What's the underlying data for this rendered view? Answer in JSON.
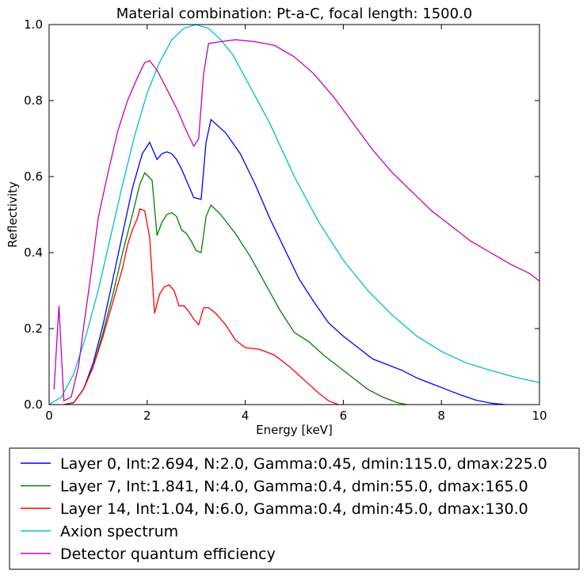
{
  "chart_data": {
    "type": "line",
    "title": "Material combination: Pt-a-C, focal length: 1500.0",
    "xlabel": "Energy [keV]",
    "ylabel": "Reflectivity",
    "xlim": [
      0,
      10
    ],
    "ylim": [
      0,
      1.0
    ],
    "xticks": [
      "0",
      "2",
      "4",
      "6",
      "8",
      "10"
    ],
    "yticks": [
      "0.0",
      "0.2",
      "0.4",
      "0.6",
      "0.8",
      "1.0"
    ],
    "grid": false,
    "legend_position": "bottom",
    "series": [
      {
        "name": "Layer 0, Int:2.694, N:2.0, Gamma:0.45, dmin:115.0, dmax:225.0",
        "color": "#0000ff",
        "points": [
          [
            0.3,
            0.0
          ],
          [
            0.5,
            0.005
          ],
          [
            0.7,
            0.04
          ],
          [
            0.9,
            0.11
          ],
          [
            1.1,
            0.21
          ],
          [
            1.3,
            0.33
          ],
          [
            1.5,
            0.45
          ],
          [
            1.7,
            0.57
          ],
          [
            1.9,
            0.66
          ],
          [
            2.05,
            0.69
          ],
          [
            2.2,
            0.645
          ],
          [
            2.3,
            0.66
          ],
          [
            2.4,
            0.665
          ],
          [
            2.5,
            0.66
          ],
          [
            2.6,
            0.645
          ],
          [
            2.7,
            0.62
          ],
          [
            2.8,
            0.59
          ],
          [
            2.95,
            0.545
          ],
          [
            3.1,
            0.54
          ],
          [
            3.2,
            0.69
          ],
          [
            3.3,
            0.75
          ],
          [
            3.6,
            0.715
          ],
          [
            3.9,
            0.66
          ],
          [
            4.2,
            0.58
          ],
          [
            4.5,
            0.49
          ],
          [
            4.8,
            0.41
          ],
          [
            5.1,
            0.33
          ],
          [
            5.4,
            0.27
          ],
          [
            5.7,
            0.215
          ],
          [
            6.0,
            0.18
          ],
          [
            6.3,
            0.15
          ],
          [
            6.6,
            0.12
          ],
          [
            6.9,
            0.105
          ],
          [
            7.2,
            0.09
          ],
          [
            7.5,
            0.07
          ],
          [
            7.8,
            0.055
          ],
          [
            8.1,
            0.04
          ],
          [
            8.4,
            0.025
          ],
          [
            8.7,
            0.012
          ],
          [
            9.0,
            0.004
          ],
          [
            9.3,
            0.0
          ]
        ]
      },
      {
        "name": "Layer 7, Int:1.841, N:4.0, Gamma:0.4, dmin:55.0, dmax:165.0",
        "color": "#008000",
        "points": [
          [
            0.3,
            0.0
          ],
          [
            0.5,
            0.005
          ],
          [
            0.7,
            0.04
          ],
          [
            0.9,
            0.1
          ],
          [
            1.1,
            0.19
          ],
          [
            1.3,
            0.29
          ],
          [
            1.5,
            0.4
          ],
          [
            1.7,
            0.5
          ],
          [
            1.85,
            0.58
          ],
          [
            1.95,
            0.61
          ],
          [
            2.1,
            0.59
          ],
          [
            2.2,
            0.445
          ],
          [
            2.3,
            0.48
          ],
          [
            2.4,
            0.5
          ],
          [
            2.5,
            0.505
          ],
          [
            2.6,
            0.495
          ],
          [
            2.7,
            0.46
          ],
          [
            2.8,
            0.45
          ],
          [
            2.9,
            0.43
          ],
          [
            3.0,
            0.405
          ],
          [
            3.1,
            0.4
          ],
          [
            3.2,
            0.495
          ],
          [
            3.3,
            0.525
          ],
          [
            3.5,
            0.5
          ],
          [
            3.8,
            0.45
          ],
          [
            4.1,
            0.39
          ],
          [
            4.4,
            0.32
          ],
          [
            4.7,
            0.25
          ],
          [
            5.0,
            0.19
          ],
          [
            5.3,
            0.165
          ],
          [
            5.6,
            0.13
          ],
          [
            5.9,
            0.1
          ],
          [
            6.2,
            0.07
          ],
          [
            6.5,
            0.04
          ],
          [
            6.8,
            0.02
          ],
          [
            7.1,
            0.005
          ],
          [
            7.3,
            0.0
          ]
        ]
      },
      {
        "name": "Layer 14, Int:1.04, N:6.0, Gamma:0.4, dmin:45.0, dmax:130.0",
        "color": "#ff0000",
        "points": [
          [
            0.3,
            0.0
          ],
          [
            0.5,
            0.005
          ],
          [
            0.7,
            0.04
          ],
          [
            0.9,
            0.1
          ],
          [
            1.1,
            0.18
          ],
          [
            1.3,
            0.27
          ],
          [
            1.5,
            0.36
          ],
          [
            1.6,
            0.42
          ],
          [
            1.7,
            0.46
          ],
          [
            1.8,
            0.49
          ],
          [
            1.85,
            0.515
          ],
          [
            1.95,
            0.51
          ],
          [
            2.05,
            0.44
          ],
          [
            2.15,
            0.24
          ],
          [
            2.25,
            0.29
          ],
          [
            2.35,
            0.31
          ],
          [
            2.45,
            0.315
          ],
          [
            2.55,
            0.3
          ],
          [
            2.65,
            0.26
          ],
          [
            2.75,
            0.26
          ],
          [
            2.85,
            0.245
          ],
          [
            2.95,
            0.225
          ],
          [
            3.05,
            0.21
          ],
          [
            3.15,
            0.255
          ],
          [
            3.25,
            0.255
          ],
          [
            3.4,
            0.24
          ],
          [
            3.6,
            0.21
          ],
          [
            3.8,
            0.17
          ],
          [
            4.0,
            0.15
          ],
          [
            4.3,
            0.145
          ],
          [
            4.6,
            0.13
          ],
          [
            4.9,
            0.1
          ],
          [
            5.2,
            0.065
          ],
          [
            5.5,
            0.03
          ],
          [
            5.7,
            0.01
          ],
          [
            5.9,
            0.0
          ]
        ]
      },
      {
        "name": "Axion spectrum",
        "color": "#00bfbf",
        "points": [
          [
            0.0,
            0.0
          ],
          [
            0.25,
            0.02
          ],
          [
            0.5,
            0.08
          ],
          [
            0.75,
            0.18
          ],
          [
            1.0,
            0.3
          ],
          [
            1.25,
            0.44
          ],
          [
            1.5,
            0.58
          ],
          [
            1.75,
            0.71
          ],
          [
            2.0,
            0.82
          ],
          [
            2.25,
            0.9
          ],
          [
            2.5,
            0.96
          ],
          [
            2.75,
            0.99
          ],
          [
            3.0,
            1.0
          ],
          [
            3.25,
            0.99
          ],
          [
            3.5,
            0.96
          ],
          [
            3.75,
            0.92
          ],
          [
            4.0,
            0.86
          ],
          [
            4.5,
            0.74
          ],
          [
            5.0,
            0.6
          ],
          [
            5.5,
            0.48
          ],
          [
            6.0,
            0.38
          ],
          [
            6.5,
            0.3
          ],
          [
            7.0,
            0.235
          ],
          [
            7.5,
            0.18
          ],
          [
            8.0,
            0.14
          ],
          [
            8.5,
            0.11
          ],
          [
            9.0,
            0.09
          ],
          [
            9.5,
            0.072
          ],
          [
            10.0,
            0.058
          ]
        ]
      },
      {
        "name": "Detector quantum efficiency",
        "color": "#bf00bf",
        "points": [
          [
            0.1,
            0.04
          ],
          [
            0.2,
            0.26
          ],
          [
            0.3,
            0.01
          ],
          [
            0.45,
            0.02
          ],
          [
            0.6,
            0.1
          ],
          [
            0.7,
            0.2
          ],
          [
            0.85,
            0.34
          ],
          [
            1.0,
            0.49
          ],
          [
            1.2,
            0.61
          ],
          [
            1.4,
            0.72
          ],
          [
            1.6,
            0.8
          ],
          [
            1.8,
            0.86
          ],
          [
            1.95,
            0.9
          ],
          [
            2.05,
            0.905
          ],
          [
            2.2,
            0.88
          ],
          [
            2.4,
            0.83
          ],
          [
            2.6,
            0.78
          ],
          [
            2.8,
            0.72
          ],
          [
            2.95,
            0.68
          ],
          [
            3.05,
            0.7
          ],
          [
            3.15,
            0.87
          ],
          [
            3.25,
            0.95
          ],
          [
            3.5,
            0.955
          ],
          [
            3.8,
            0.96
          ],
          [
            4.2,
            0.955
          ],
          [
            4.6,
            0.945
          ],
          [
            5.0,
            0.915
          ],
          [
            5.4,
            0.87
          ],
          [
            5.8,
            0.81
          ],
          [
            6.2,
            0.74
          ],
          [
            6.6,
            0.67
          ],
          [
            7.0,
            0.61
          ],
          [
            7.4,
            0.56
          ],
          [
            7.8,
            0.51
          ],
          [
            8.2,
            0.47
          ],
          [
            8.6,
            0.43
          ],
          [
            9.0,
            0.4
          ],
          [
            9.4,
            0.37
          ],
          [
            9.8,
            0.345
          ],
          [
            10.0,
            0.325
          ]
        ]
      }
    ]
  }
}
